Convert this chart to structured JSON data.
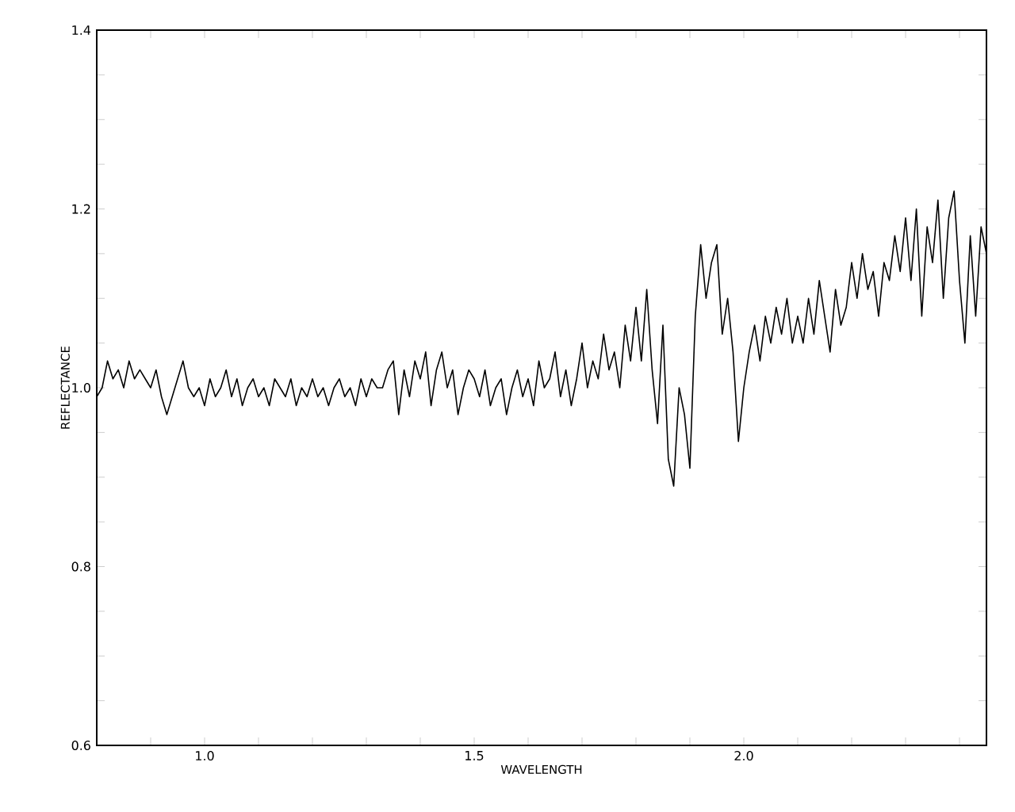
{
  "chart_data": {
    "type": "line",
    "xlabel": "WAVELENGTH",
    "ylabel": "REFLECTANCE",
    "xlim": [
      0.8,
      2.45
    ],
    "ylim": [
      0.6,
      1.4
    ],
    "xticks": [
      {
        "value": 0.9,
        "label": null
      },
      {
        "value": 1.0,
        "label": "1.0"
      },
      {
        "value": 1.1,
        "label": null
      },
      {
        "value": 1.2,
        "label": null
      },
      {
        "value": 1.3,
        "label": null
      },
      {
        "value": 1.4,
        "label": null
      },
      {
        "value": 1.5,
        "label": "1.5"
      },
      {
        "value": 1.6,
        "label": null
      },
      {
        "value": 1.7,
        "label": null
      },
      {
        "value": 1.8,
        "label": null
      },
      {
        "value": 1.9,
        "label": null
      },
      {
        "value": 2.0,
        "label": "2.0"
      },
      {
        "value": 2.1,
        "label": null
      },
      {
        "value": 2.2,
        "label": null
      },
      {
        "value": 2.3,
        "label": null
      },
      {
        "value": 2.4,
        "label": null
      }
    ],
    "yticks": [
      {
        "value": 0.6,
        "label": "0.6"
      },
      {
        "value": 0.65,
        "label": null
      },
      {
        "value": 0.7,
        "label": null
      },
      {
        "value": 0.75,
        "label": null
      },
      {
        "value": 0.8,
        "label": "0.8"
      },
      {
        "value": 0.85,
        "label": null
      },
      {
        "value": 0.9,
        "label": null
      },
      {
        "value": 0.95,
        "label": null
      },
      {
        "value": 1.0,
        "label": "1.0"
      },
      {
        "value": 1.05,
        "label": null
      },
      {
        "value": 1.1,
        "label": null
      },
      {
        "value": 1.15,
        "label": null
      },
      {
        "value": 1.2,
        "label": "1.2"
      },
      {
        "value": 1.25,
        "label": null
      },
      {
        "value": 1.3,
        "label": null
      },
      {
        "value": 1.35,
        "label": null
      },
      {
        "value": 1.4,
        "label": "1.4"
      }
    ],
    "series": [
      {
        "color": "#000000",
        "x": [
          0.8,
          0.81,
          0.82,
          0.83,
          0.84,
          0.85,
          0.86,
          0.87,
          0.88,
          0.89,
          0.9,
          0.91,
          0.92,
          0.93,
          0.94,
          0.95,
          0.96,
          0.97,
          0.98,
          0.99,
          1.0,
          1.01,
          1.02,
          1.03,
          1.04,
          1.05,
          1.06,
          1.07,
          1.08,
          1.09,
          1.1,
          1.11,
          1.12,
          1.13,
          1.14,
          1.15,
          1.16,
          1.17,
          1.18,
          1.19,
          1.2,
          1.21,
          1.22,
          1.23,
          1.24,
          1.25,
          1.26,
          1.27,
          1.28,
          1.29,
          1.3,
          1.31,
          1.32,
          1.33,
          1.34,
          1.35,
          1.36,
          1.37,
          1.38,
          1.39,
          1.4,
          1.41,
          1.42,
          1.43,
          1.44,
          1.45,
          1.46,
          1.47,
          1.48,
          1.49,
          1.5,
          1.51,
          1.52,
          1.53,
          1.54,
          1.55,
          1.56,
          1.57,
          1.58,
          1.59,
          1.6,
          1.61,
          1.62,
          1.63,
          1.64,
          1.65,
          1.66,
          1.67,
          1.68,
          1.69,
          1.7,
          1.71,
          1.72,
          1.73,
          1.74,
          1.75,
          1.76,
          1.77,
          1.78,
          1.79,
          1.8,
          1.81,
          1.82,
          1.83,
          1.84,
          1.85,
          1.86,
          1.87,
          1.88,
          1.89,
          1.9,
          1.91,
          1.92,
          1.93,
          1.94,
          1.95,
          1.96,
          1.97,
          1.98,
          1.99,
          2.0,
          2.01,
          2.02,
          2.03,
          2.04,
          2.05,
          2.06,
          2.07,
          2.08,
          2.09,
          2.1,
          2.11,
          2.12,
          2.13,
          2.14,
          2.15,
          2.16,
          2.17,
          2.18,
          2.19,
          2.2,
          2.21,
          2.22,
          2.23,
          2.24,
          2.25,
          2.26,
          2.27,
          2.28,
          2.29,
          2.3,
          2.31,
          2.32,
          2.33,
          2.34,
          2.35,
          2.36,
          2.37,
          2.38,
          2.39,
          2.4,
          2.41,
          2.42,
          2.43,
          2.44,
          2.45
        ],
        "values": [
          0.99,
          1.0,
          1.03,
          1.01,
          1.02,
          1.0,
          1.03,
          1.01,
          1.02,
          1.01,
          1.0,
          1.02,
          0.99,
          0.97,
          0.99,
          1.01,
          1.03,
          1.0,
          0.99,
          1.0,
          0.98,
          1.01,
          0.99,
          1.0,
          1.02,
          0.99,
          1.01,
          0.98,
          1.0,
          1.01,
          0.99,
          1.0,
          0.98,
          1.01,
          1.0,
          0.99,
          1.01,
          0.98,
          1.0,
          0.99,
          1.01,
          0.99,
          1.0,
          0.98,
          1.0,
          1.01,
          0.99,
          1.0,
          0.98,
          1.01,
          0.99,
          1.01,
          1.0,
          1.0,
          1.02,
          1.03,
          0.97,
          1.02,
          0.99,
          1.03,
          1.01,
          1.04,
          0.98,
          1.02,
          1.04,
          1.0,
          1.02,
          0.97,
          1.0,
          1.02,
          1.01,
          0.99,
          1.02,
          0.98,
          1.0,
          1.01,
          0.97,
          1.0,
          1.02,
          0.99,
          1.01,
          0.98,
          1.03,
          1.0,
          1.01,
          1.04,
          0.99,
          1.02,
          0.98,
          1.01,
          1.05,
          1.0,
          1.03,
          1.01,
          1.06,
          1.02,
          1.04,
          1.0,
          1.07,
          1.03,
          1.09,
          1.03,
          1.11,
          1.02,
          0.96,
          1.07,
          0.92,
          0.89,
          1.0,
          0.97,
          0.91,
          1.08,
          1.16,
          1.1,
          1.14,
          1.16,
          1.06,
          1.1,
          1.04,
          0.94,
          1.0,
          1.04,
          1.07,
          1.03,
          1.08,
          1.05,
          1.09,
          1.06,
          1.1,
          1.05,
          1.08,
          1.05,
          1.1,
          1.06,
          1.12,
          1.08,
          1.04,
          1.11,
          1.07,
          1.09,
          1.14,
          1.1,
          1.15,
          1.11,
          1.13,
          1.08,
          1.14,
          1.12,
          1.17,
          1.13,
          1.19,
          1.12,
          1.2,
          1.08,
          1.18,
          1.14,
          1.21,
          1.1,
          1.19,
          1.22,
          1.12,
          1.05,
          1.17,
          1.08,
          1.18,
          1.15
        ]
      }
    ]
  }
}
